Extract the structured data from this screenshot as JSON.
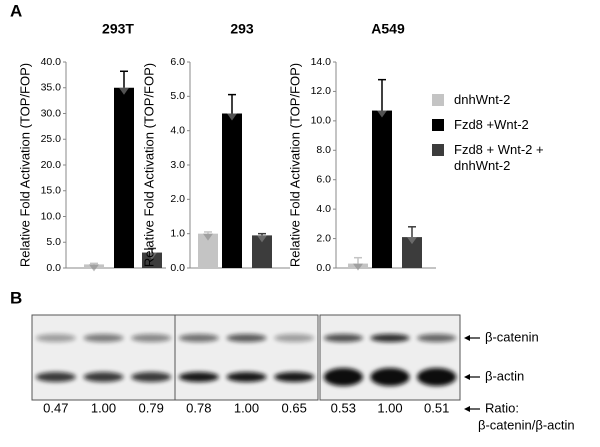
{
  "panel_labels": [
    "A",
    "B"
  ],
  "legend": [
    {
      "name": "dnhWnt-2",
      "color": "#c4c4c4"
    },
    {
      "name": "Fzd8 +Wnt-2",
      "color": "#000000"
    },
    {
      "name": "Fzd8 + Wnt-2 + dnhWnt-2",
      "color": "#3c3c3c"
    }
  ],
  "chart_data": [
    {
      "type": "bar",
      "title": "293T",
      "ylabel": "Relative Fold Activation (TOP/FOP)",
      "values": [
        0.7,
        35,
        3
      ],
      "errors": [
        0.2,
        3.2,
        0.8
      ],
      "ylim": [
        0,
        40
      ],
      "yticks": [
        {
          "value": 0,
          "label": "0.0"
        },
        {
          "value": 5,
          "label": "5.0"
        },
        {
          "value": 10,
          "label": "10.0"
        },
        {
          "value": 15,
          "label": "15.0"
        },
        {
          "value": 20,
          "label": "20.0"
        },
        {
          "value": 25,
          "label": "25.0"
        },
        {
          "value": 30,
          "label": "30.0"
        },
        {
          "value": 35,
          "label": "35.0"
        },
        {
          "value": 40,
          "label": "40.0"
        }
      ]
    },
    {
      "type": "bar",
      "title": "293",
      "ylabel": "Relative Fold Activation (TOP/FOP)",
      "values": [
        1.0,
        4.5,
        0.95
      ],
      "errors": [
        0.05,
        0.55,
        0.05
      ],
      "ylim": [
        0,
        6
      ],
      "yticks": [
        {
          "value": 0,
          "label": "0.0"
        },
        {
          "value": 1,
          "label": "1.0"
        },
        {
          "value": 2,
          "label": "2.0"
        },
        {
          "value": 3,
          "label": "3.0"
        },
        {
          "value": 4,
          "label": "4.0"
        },
        {
          "value": 5,
          "label": "5.0"
        },
        {
          "value": 6,
          "label": "6.0"
        }
      ]
    },
    {
      "type": "bar",
      "title": "A549",
      "ylabel": "Relative Fold Activation (TOP/FOP)",
      "values": [
        0.3,
        10.7,
        2.1
      ],
      "errors": [
        0.4,
        2.1,
        0.7
      ],
      "ylim": [
        0,
        14
      ],
      "yticks": [
        {
          "value": 0,
          "label": "0.0"
        },
        {
          "value": 2,
          "label": "2.0"
        },
        {
          "value": 4,
          "label": "4.0"
        },
        {
          "value": 6,
          "label": "6.0"
        },
        {
          "value": 8,
          "label": "8.0"
        },
        {
          "value": 10,
          "label": "10.0"
        },
        {
          "value": 12,
          "label": "12.0"
        },
        {
          "value": 14,
          "label": "14.0"
        }
      ]
    }
  ],
  "blot": {
    "bands": [
      "β-catenin",
      "β-actin"
    ],
    "ratio_label": "Ratio:",
    "ratio_sublabel": "β-catenin/β-actin",
    "ratios": [
      [
        "0.47",
        "1.00",
        "0.79"
      ],
      [
        "0.78",
        "1.00",
        "0.65"
      ],
      [
        "0.53",
        "1.00",
        "0.51"
      ]
    ]
  }
}
